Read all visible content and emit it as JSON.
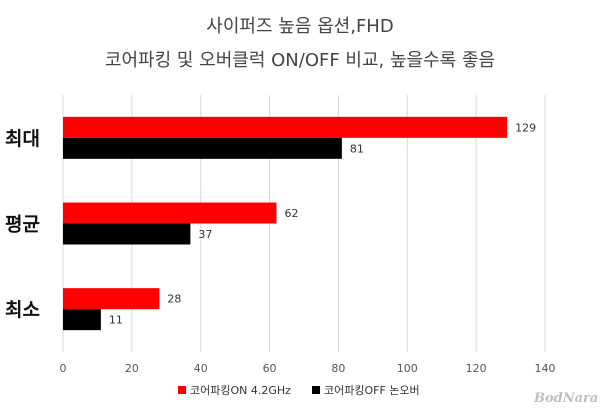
{
  "chart_data": {
    "type": "bar",
    "orientation": "horizontal",
    "title_lines": [
      "사이퍼즈 높음 옵션,FHD",
      "코어파킹 및 오버클럭 ON/OFF 비교, 높을수록 좋음"
    ],
    "categories": [
      "최대",
      "평균",
      "최소"
    ],
    "series": [
      {
        "name": "코어파킹ON 4.2GHz",
        "color": "#ff0000",
        "values": [
          129,
          62,
          28
        ]
      },
      {
        "name": "코어파킹OFF 논오버",
        "color": "#000000",
        "values": [
          81,
          37,
          11
        ]
      }
    ],
    "xlim": [
      0,
      140
    ],
    "xticks": [
      "0",
      "20",
      "40",
      "60",
      "80",
      "100",
      "120",
      "140"
    ],
    "grid": true,
    "legend_position": "bottom",
    "watermark": "BodNara"
  }
}
